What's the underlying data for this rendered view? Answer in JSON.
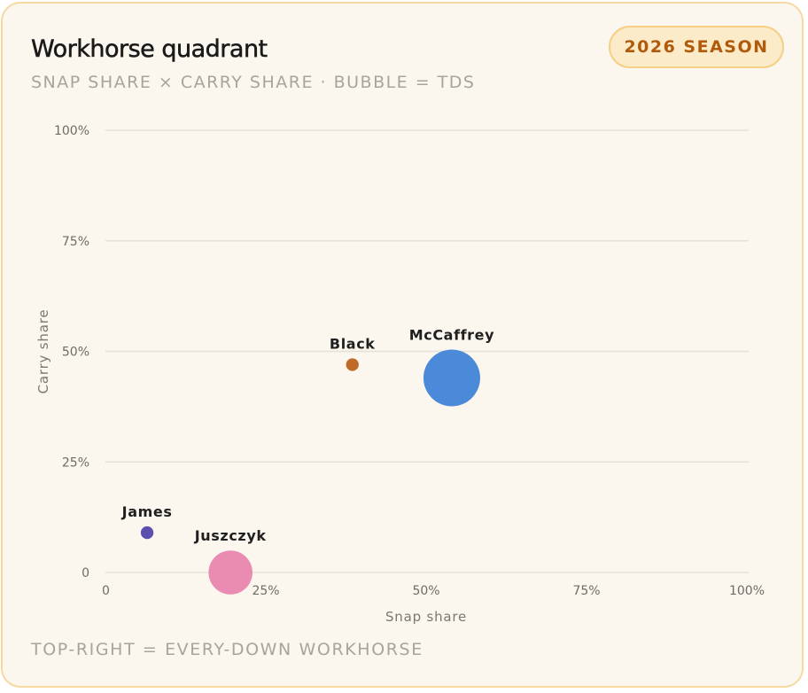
{
  "header": {
    "title": "Workhorse quadrant",
    "subtitle": "SNAP SHARE × CARRY SHARE · BUBBLE = TDS",
    "badge": "2026 SEASON"
  },
  "footer": {
    "note": "TOP-RIGHT = EVERY-DOWN WORKHORSE"
  },
  "chart_data": {
    "type": "scatter",
    "xlabel": "Snap share",
    "ylabel": "Carry share",
    "xlim": [
      0,
      100
    ],
    "ylim": [
      0,
      100
    ],
    "x_ticks": [
      {
        "value": 0,
        "label": "0"
      },
      {
        "value": 25,
        "label": "25%"
      },
      {
        "value": 50,
        "label": "50%"
      },
      {
        "value": 75,
        "label": "75%"
      },
      {
        "value": 100,
        "label": "100%"
      }
    ],
    "y_ticks": [
      {
        "value": 0,
        "label": "0"
      },
      {
        "value": 25,
        "label": "25%"
      },
      {
        "value": 50,
        "label": "50%"
      },
      {
        "value": 75,
        "label": "75%"
      },
      {
        "value": 100,
        "label": "100%"
      }
    ],
    "grid": true,
    "points": [
      {
        "name": "McCaffrey",
        "x": 54,
        "y": 44,
        "tds": 10,
        "color": "#4a8ad8"
      },
      {
        "name": "Black",
        "x": 38.5,
        "y": 47,
        "tds": 0.5,
        "color": "#c06a2a"
      },
      {
        "name": "James",
        "x": 6.5,
        "y": 9,
        "tds": 0.5,
        "color": "#5d4fae"
      },
      {
        "name": "Juszczyk",
        "x": 19.5,
        "y": 0,
        "tds": 6,
        "color": "#ea8cb2"
      }
    ]
  }
}
